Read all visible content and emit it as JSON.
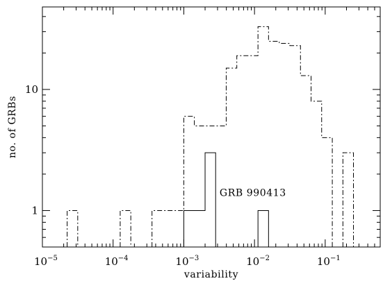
{
  "chart_data": {
    "type": "histogram",
    "xscale": "log",
    "yscale": "log",
    "xlim": [
      1e-05,
      0.6
    ],
    "ylim": [
      0.5,
      48
    ],
    "xlabel": "variability",
    "ylabel": "no. of GRBs",
    "x_ticks": [
      {
        "value": 1e-05,
        "base": "10",
        "exp": "−5"
      },
      {
        "value": 0.0001,
        "base": "10",
        "exp": "−4"
      },
      {
        "value": 0.001,
        "base": "10",
        "exp": "−3"
      },
      {
        "value": 0.01,
        "base": "10",
        "exp": "−2"
      },
      {
        "value": 0.1,
        "base": "10",
        "exp": "−1"
      }
    ],
    "y_ticks": [
      {
        "value": 1,
        "label": "1"
      },
      {
        "value": 10,
        "label": "10"
      }
    ],
    "bin_edges": [
      2.24e-05,
      3.16e-05,
      4.47e-05,
      6.31e-05,
      8.91e-05,
      0.000126,
      0.000178,
      0.000251,
      0.000355,
      0.000501,
      0.000708,
      0.001,
      0.00141,
      0.002,
      0.00282,
      0.00398,
      0.00562,
      0.00794,
      0.0112,
      0.0158,
      0.0224,
      0.0316,
      0.0447,
      0.0631,
      0.0891,
      0.126,
      0.178,
      0.251
    ],
    "series": [
      {
        "style": "dash-dot",
        "counts": [
          1,
          0,
          0,
          0,
          0,
          1,
          0,
          0,
          1,
          1,
          1,
          6,
          5,
          5,
          5,
          15,
          19,
          19,
          33,
          25,
          24,
          23,
          13,
          8,
          4,
          0,
          3
        ]
      },
      {
        "style": "solid",
        "counts": [
          0,
          0,
          0,
          0,
          0,
          0,
          0,
          0,
          0,
          0,
          0,
          1,
          1,
          3,
          0,
          0,
          0,
          0,
          1,
          0,
          0,
          0,
          0,
          0,
          0,
          0,
          0
        ]
      }
    ],
    "annotations": [
      {
        "text": "GRB 990413",
        "x": 0.0095,
        "y": 1.32
      }
    ],
    "grid": false,
    "legend": "none"
  }
}
